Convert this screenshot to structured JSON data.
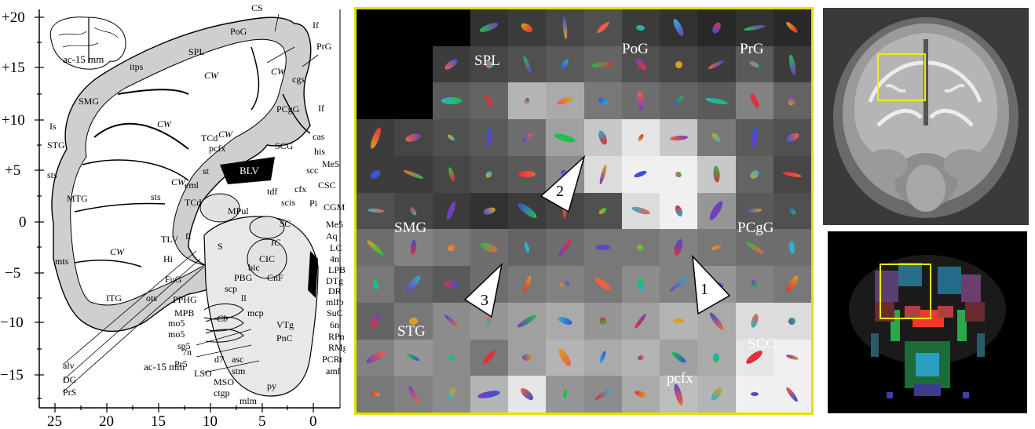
{
  "atlas": {
    "y_ticks": [
      "+20",
      "+15",
      "+10",
      "+5",
      "0",
      "−5",
      "−10",
      "−15"
    ],
    "x_ticks": [
      "25",
      "20",
      "15",
      "10",
      "5",
      "0"
    ],
    "inset_label": "ac-15 mm",
    "bottom_label": "ac-15 mm",
    "labels": {
      "CS": "CS",
      "If_top": "If",
      "PrG": "PrG",
      "PoG": "PoG",
      "SPL": "SPL",
      "itps": "itps",
      "CW1": "CW",
      "CW2": "CW",
      "cgs": "cgs",
      "SMG": "SMG",
      "PCgG": "PCgG",
      "If_mid": "If",
      "Is": "Is",
      "CW3": "CW",
      "STG": "STG",
      "TCd1": "TCd",
      "CW4": "CW",
      "pcfx": "pcfx",
      "SCG": "SCG",
      "cas": "cas",
      "his": "his",
      "st": "st",
      "eml": "eml",
      "BLV": "BLV",
      "scc": "scc",
      "Me5a": "Me5",
      "sts1": "sts",
      "CW5": "CW",
      "sts2": "sts",
      "tdf": "tdf",
      "cfx": "cfx",
      "CSC": "CSC",
      "MTG": "MTG",
      "TCd2": "TCd",
      "MPul": "MPul",
      "scis": "scis",
      "Pi": "Pi",
      "SC": "SC",
      "CGMB": "CGMB",
      "TLV": "TLV",
      "fi": "fi",
      "IC": "IC",
      "Me5b": "Me5",
      "S": "S",
      "CIC": "CIC",
      "Aq": "Aq",
      "CW6": "CW",
      "Hi": "Hi",
      "LC": "LC",
      "mts": "mts",
      "4n": "4n",
      "bic": "bic",
      "PBG": "PBG",
      "CnF": "CnF",
      "LPB": "LPB",
      "FuG": "FuG",
      "scp": "scp",
      "DTg": "DTg",
      "ITG": "ITG",
      "ots": "ots",
      "PPHG": "PPHG",
      "ll": "ll",
      "DR": "DR",
      "MPB": "MPB",
      "Cb": "Cb",
      "mlfp": "mlfp",
      "mo5a": "mo5",
      "mcp": "mcp",
      "VTg": "VTg",
      "SuC": "SuC",
      "mo5b": "mo5",
      "PnC": "PnC",
      "6n": "6n",
      "sp5": "sp5",
      "7n": "7n",
      "RPn": "RPn",
      "Pr5": "Pr5",
      "d7": "d7",
      "asc": "asc",
      "RMg": "RMg",
      "alv": "alv",
      "LSO": "LSO",
      "stm": "stm",
      "PCRt": "PCRt",
      "DG": "DG",
      "MSO": "MSO",
      "amf": "amf",
      "PrS": "PrS",
      "py": "py",
      "ctgp": "ctgp",
      "mlm": "mlm"
    }
  },
  "glyph_panel": {
    "region_labels": [
      "SPL",
      "PoG",
      "PrG",
      "SMG",
      "PCgG",
      "STG",
      "SCC",
      "pcfx"
    ],
    "arrow_labels": [
      "2",
      "1",
      "3"
    ]
  },
  "colors": {
    "roi": "#f2ec10",
    "panel_border": "#e6e000"
  }
}
